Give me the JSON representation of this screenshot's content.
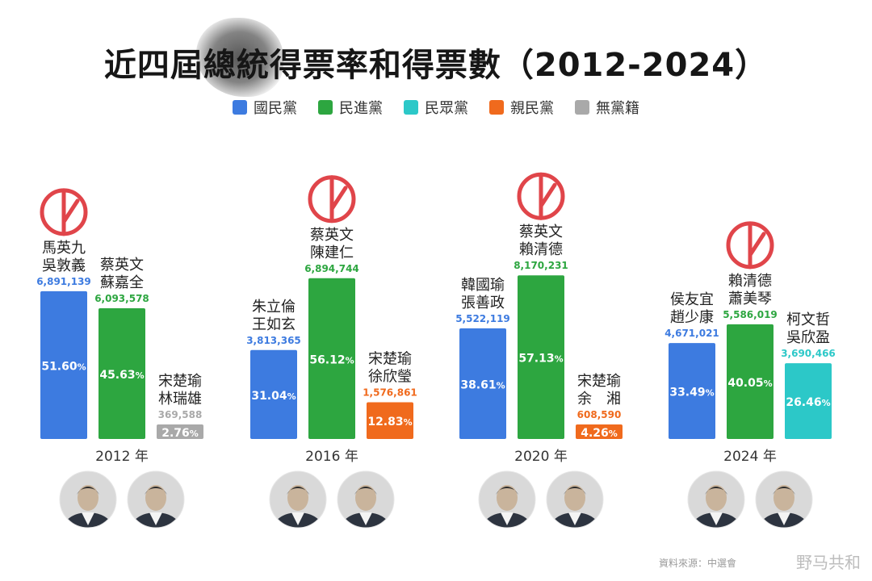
{
  "title": "近四屆總統得票率和得票數（2012-2024）",
  "legend": [
    {
      "label": "國民黨",
      "color": "#3d7be0"
    },
    {
      "label": "民進黨",
      "color": "#2da640"
    },
    {
      "label": "民眾黨",
      "color": "#2cc8c8"
    },
    {
      "label": "親民黨",
      "color": "#f06a1d"
    },
    {
      "label": "無黨籍",
      "color": "#a9a9a9"
    }
  ],
  "colors": {
    "國民黨": "#3d7be0",
    "民進黨": "#2da640",
    "民眾黨": "#2cc8c8",
    "親民黨": "#f06a1d",
    "無黨籍": "#a9a9a9",
    "stamp": "#e0454a"
  },
  "chart_data": {
    "type": "bar",
    "value_unit": "%",
    "ylim": [
      0,
      60
    ],
    "groups": [
      {
        "year_label": "2012 年",
        "candidates": [
          {
            "names": [
              "馬英九",
              "吳敦義"
            ],
            "votes": "6,891,139",
            "percent": 51.6,
            "party": "國民黨",
            "winner": true
          },
          {
            "names": [
              "蔡英文",
              "蘇嘉全"
            ],
            "votes": "6,093,578",
            "percent": 45.63,
            "party": "民進黨",
            "winner": false
          },
          {
            "names": [
              "宋楚瑜",
              "林瑞雄"
            ],
            "votes": "369,588",
            "percent": 2.76,
            "party": "無黨籍",
            "winner": false
          }
        ]
      },
      {
        "year_label": "2016 年",
        "candidates": [
          {
            "names": [
              "朱立倫",
              "王如玄"
            ],
            "votes": "3,813,365",
            "percent": 31.04,
            "party": "國民黨",
            "winner": false
          },
          {
            "names": [
              "蔡英文",
              "陳建仁"
            ],
            "votes": "6,894,744",
            "percent": 56.12,
            "party": "民進黨",
            "winner": true
          },
          {
            "names": [
              "宋楚瑜",
              "徐欣瑩"
            ],
            "votes": "1,576,861",
            "percent": 12.83,
            "party": "親民黨",
            "winner": false
          }
        ]
      },
      {
        "year_label": "2020 年",
        "candidates": [
          {
            "names": [
              "韓國瑜",
              "張善政"
            ],
            "votes": "5,522,119",
            "percent": 38.61,
            "party": "國民黨",
            "winner": false
          },
          {
            "names": [
              "蔡英文",
              "賴清德"
            ],
            "votes": "8,170,231",
            "percent": 57.13,
            "party": "民進黨",
            "winner": true
          },
          {
            "names": [
              "宋楚瑜",
              "余　湘"
            ],
            "votes": "608,590",
            "percent": 4.26,
            "party": "親民黨",
            "winner": false
          }
        ]
      },
      {
        "year_label": "2024 年",
        "candidates": [
          {
            "names": [
              "侯友宜",
              "趙少康"
            ],
            "votes": "4,671,021",
            "percent": 33.49,
            "party": "國民黨",
            "winner": false
          },
          {
            "names": [
              "賴清德",
              "蕭美琴"
            ],
            "votes": "5,586,019",
            "percent": 40.05,
            "party": "民進黨",
            "winner": true
          },
          {
            "names": [
              "柯文哲",
              "吳欣盈"
            ],
            "votes": "3,690,466",
            "percent": 26.46,
            "party": "民眾黨",
            "winner": false
          }
        ]
      }
    ]
  },
  "watermark": "野马共和",
  "watermark_small": "資料來源：中選會"
}
